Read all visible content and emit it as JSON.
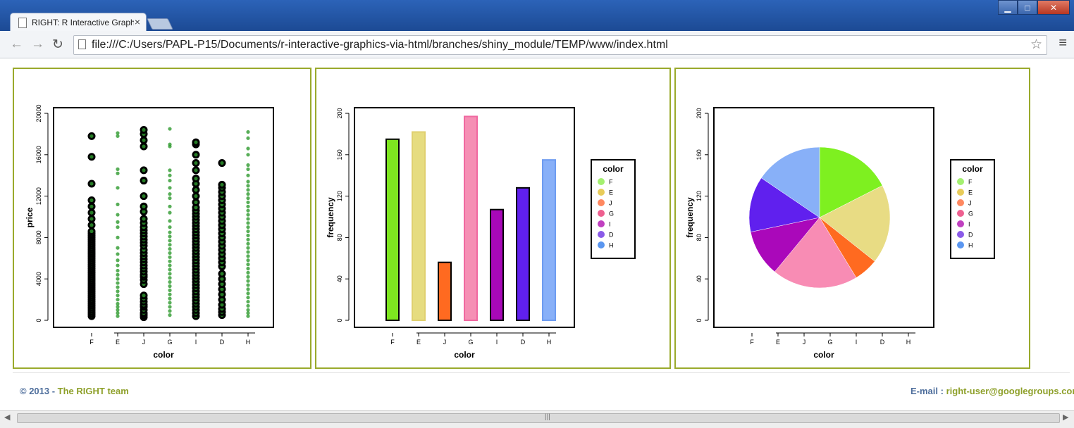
{
  "browser": {
    "tab_title": "RIGHT: R Interactive Graphics",
    "tab_close": "×",
    "url": "file:///C:/Users/PAPL-P15/Documents/r-interactive-graphics-via-html/branches/shiny_module/TEMP/www/index.html",
    "back_icon": "←",
    "forward_icon": "→",
    "reload_icon": "↻",
    "star_icon": "☆",
    "menu_icon": "≡",
    "min_icon": "▁",
    "max_icon": "□",
    "close_icon": "✕"
  },
  "footer": {
    "copyright": "© 2013 - ",
    "team": "The RIGHT team",
    "email_label": "E-mail : ",
    "email": "right-user@googlegroups.com"
  },
  "scrollbar": {
    "left_arrow": "◀",
    "right_arrow": "▶",
    "grip": "|||"
  },
  "chart_data": [
    {
      "type": "scatter",
      "xlabel": "color",
      "ylabel": "price",
      "categories": [
        "F",
        "E",
        "J",
        "G",
        "I",
        "D",
        "H"
      ],
      "yticks": [
        "0",
        "4000",
        "8000",
        "12000",
        "16000",
        "20000"
      ],
      "ylim": [
        0,
        20000
      ],
      "point_color": "#2e9a2e",
      "selected_color": "#000000",
      "selected_categories": [
        "F",
        "J",
        "I",
        "D"
      ],
      "points": {
        "F": [
          400,
          600,
          800,
          1000,
          1200,
          1400,
          1600,
          1800,
          2000,
          2200,
          2400,
          2600,
          2800,
          3000,
          3200,
          3400,
          3600,
          3800,
          4000,
          4200,
          4400,
          4600,
          4800,
          5000,
          5200,
          5400,
          5600,
          5800,
          6000,
          6200,
          6400,
          6600,
          6800,
          7000,
          7200,
          7400,
          7600,
          7800,
          8000,
          8200,
          8400,
          8600,
          9200,
          9800,
          10400,
          11000,
          11600,
          13200,
          15800,
          17800
        ],
        "E": [
          400,
          700,
          1000,
          1300,
          1600,
          2000,
          2400,
          2800,
          3200,
          3600,
          4000,
          4400,
          4800,
          5300,
          5800,
          6400,
          7000,
          8000,
          9000,
          9500,
          10200,
          11200,
          12800,
          14200,
          14600,
          17800,
          18100
        ],
        "J": [
          300,
          500,
          700,
          1000,
          1300,
          1500,
          1800,
          2100,
          2400,
          3500,
          3900,
          4200,
          4400,
          4700,
          5000,
          5300,
          5600,
          5900,
          6200,
          6500,
          6800,
          7200,
          7500,
          7800,
          8100,
          8400,
          8700,
          9000,
          9400,
          9800,
          10500,
          11000,
          12000,
          13500,
          14500,
          16800,
          17400,
          18000,
          18400
        ],
        "G": [
          500,
          900,
          1300,
          1700,
          2100,
          2500,
          2900,
          3300,
          3700,
          4100,
          4500,
          4900,
          5300,
          5700,
          6100,
          6500,
          6900,
          7300,
          7700,
          8100,
          8500,
          9000,
          9600,
          10400,
          11000,
          11800,
          12200,
          12800,
          13500,
          14000,
          14500,
          16800,
          17000,
          18500
        ],
        "I": [
          400,
          700,
          1000,
          1300,
          1600,
          1900,
          2200,
          2500,
          2800,
          3100,
          3400,
          3700,
          4000,
          4300,
          4600,
          4900,
          5200,
          5500,
          5800,
          6100,
          6400,
          6700,
          7000,
          7300,
          7600,
          7900,
          8200,
          8500,
          8800,
          9100,
          9400,
          9700,
          10000,
          10300,
          10600,
          10900,
          11400,
          12000,
          12600,
          13200,
          13700,
          14500,
          15200,
          16000,
          17000,
          17200
        ],
        "D": [
          500,
          800,
          1100,
          1500,
          2000,
          2500,
          3000,
          3500,
          4000,
          4500,
          5200,
          5600,
          6000,
          6400,
          6800,
          7200,
          7600,
          8000,
          8400,
          8800,
          9200,
          9600,
          10000,
          10400,
          10800,
          11200,
          11600,
          12000,
          12400,
          12800,
          13100,
          15200
        ],
        "H": [
          400,
          700,
          1000,
          1400,
          1800,
          2200,
          2600,
          3000,
          3400,
          3800,
          4200,
          4600,
          5000,
          5400,
          5800,
          6200,
          6600,
          7000,
          7400,
          7800,
          8200,
          8600,
          9000,
          9400,
          9800,
          10200,
          10600,
          11000,
          11400,
          11800,
          12200,
          12600,
          13000,
          13400,
          14000,
          14600,
          15000,
          16000,
          16600,
          17600,
          18200
        ]
      }
    },
    {
      "type": "bar",
      "xlabel": "color",
      "ylabel": "frequency",
      "categories": [
        "F",
        "E",
        "J",
        "G",
        "I",
        "D",
        "H"
      ],
      "values": [
        175,
        182,
        56,
        197,
        107,
        128,
        155
      ],
      "yticks": [
        "0",
        "40",
        "80",
        "120",
        "160",
        "200"
      ],
      "ylim": [
        0,
        200
      ],
      "colors": [
        "#7ee620",
        "#e6dc80",
        "#ff6a20",
        "#f58fb4",
        "#a808b8",
        "#6020ee",
        "#88b0f8"
      ],
      "stroke_colors": [
        "#000000",
        "#e0d070",
        "#000000",
        "#f068a0",
        "#000000",
        "#000000",
        "#6e9cf0"
      ],
      "legend": {
        "title": "color",
        "entries": [
          "F",
          "E",
          "J",
          "G",
          "I",
          "D",
          "H"
        ],
        "colors": [
          "#a4f070",
          "#e8cc5a",
          "#ff8860",
          "#ee6090",
          "#c040c0",
          "#8a5ae8",
          "#5a96f0"
        ]
      }
    },
    {
      "type": "pie",
      "xlabel": "color",
      "ylabel": "frequency",
      "categories": [
        "F",
        "E",
        "J",
        "G",
        "I",
        "D",
        "H"
      ],
      "values": [
        175,
        182,
        56,
        197,
        107,
        128,
        155
      ],
      "yticks": [
        "0",
        "40",
        "80",
        "120",
        "160",
        "200"
      ],
      "ylim": [
        0,
        200
      ],
      "colors": [
        "#7ef020",
        "#e8dc84",
        "#ff6a20",
        "#f88cb4",
        "#aa08ba",
        "#6020ee",
        "#88b0f8"
      ],
      "legend": {
        "title": "color",
        "entries": [
          "F",
          "E",
          "J",
          "G",
          "I",
          "D",
          "H"
        ],
        "colors": [
          "#a4f070",
          "#e8cc5a",
          "#ff8860",
          "#ee6090",
          "#c040c0",
          "#8a5ae8",
          "#5a96f0"
        ]
      }
    }
  ]
}
